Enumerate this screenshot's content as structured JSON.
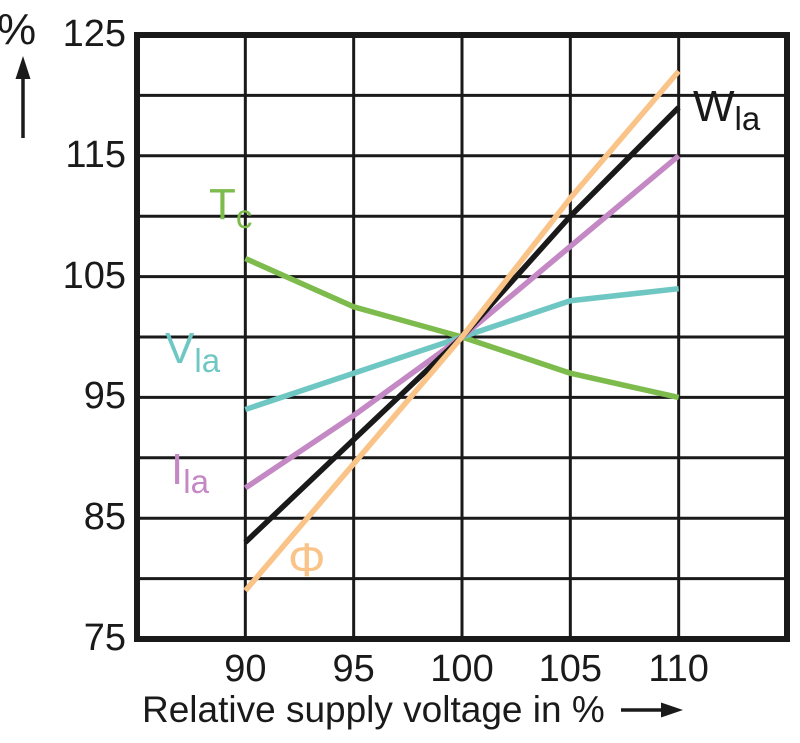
{
  "chart_data": {
    "type": "line",
    "x": [
      90,
      95,
      100,
      105,
      110
    ],
    "x_tick_labels": [
      "90",
      "95",
      "100",
      "105",
      "110"
    ],
    "y_ticks": [
      125,
      115,
      105,
      95,
      85,
      75
    ],
    "y_tick_labels": [
      "125",
      "115",
      "105",
      "95",
      "85",
      "75"
    ],
    "xlabel": "Relative supply voltage in %",
    "y_unit_label": "%",
    "xlim": [
      85,
      115
    ],
    "ylim": [
      75,
      125
    ],
    "grid_step": 5,
    "grid": true,
    "legend_position": "inline-labels-on-plot",
    "frame_color": "#1a1a1a",
    "series": [
      {
        "name": "Tc",
        "label_main": "T",
        "label_sub": "c",
        "color": "#7cbb4c",
        "values": [
          106.5,
          102.5,
          100,
          97,
          95
        ]
      },
      {
        "name": "Vla",
        "label_main": "V",
        "label_sub": "la",
        "color": "#6fc7c3",
        "values": [
          94,
          97,
          100,
          103,
          104
        ]
      },
      {
        "name": "Ila",
        "label_main": "I",
        "label_sub": "la",
        "color": "#c488c4",
        "values": [
          87.5,
          93.5,
          100,
          107.5,
          115
        ]
      },
      {
        "name": "Wla",
        "label_main": "W",
        "label_sub": "la",
        "color": "#191919",
        "values": [
          83,
          91.5,
          100,
          110,
          119
        ]
      },
      {
        "name": "Phi",
        "label_main": "Φ",
        "label_sub": "",
        "color": "#fac387",
        "values": [
          79,
          89.5,
          100,
          111.5,
          122
        ]
      }
    ]
  }
}
